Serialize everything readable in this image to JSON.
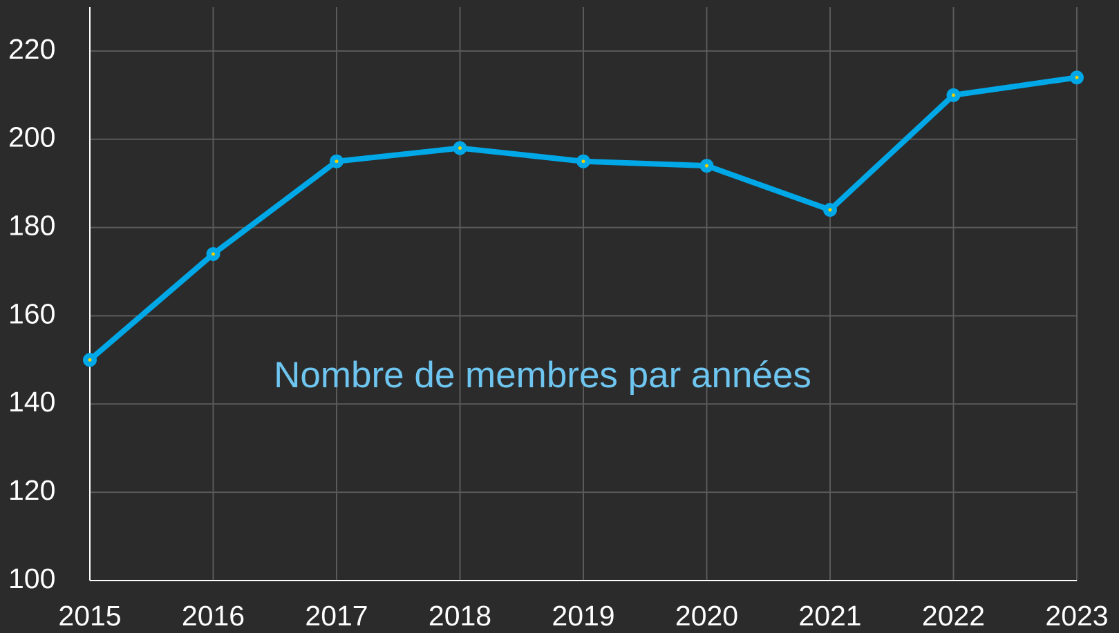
{
  "chart_data": {
    "type": "line",
    "title": "Nombre de membres par années",
    "x": [
      2015,
      2016,
      2017,
      2018,
      2019,
      2020,
      2021,
      2022,
      2023
    ],
    "series": [
      {
        "name": "Nombre de membres par années",
        "color": "#00a8e8",
        "marker_color": "#f0d000",
        "values": [
          150,
          174,
          195,
          198,
          195,
          194,
          184,
          210,
          214
        ]
      }
    ],
    "xlim": [
      2015,
      2023
    ],
    "xticks": [
      2015,
      2016,
      2017,
      2018,
      2019,
      2020,
      2021,
      2022,
      2023
    ],
    "ylim": [
      100,
      230
    ],
    "yticks": [
      100,
      120,
      140,
      160,
      180,
      200,
      220
    ],
    "grid": true
  }
}
